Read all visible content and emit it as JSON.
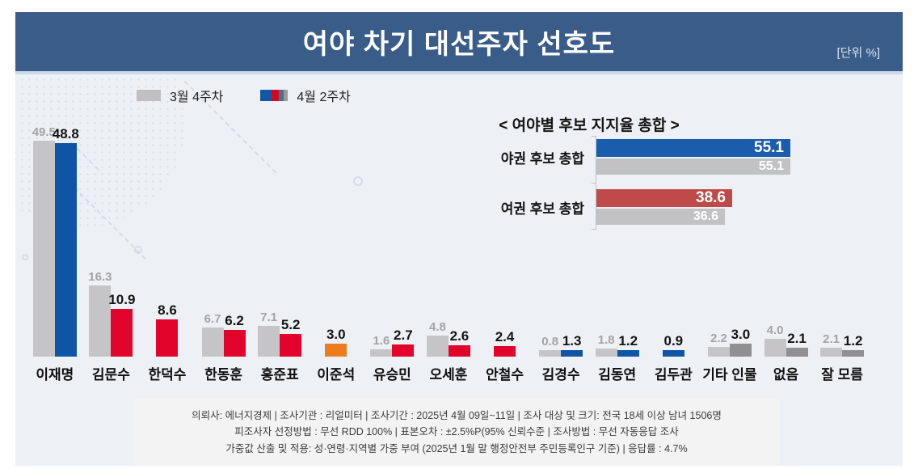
{
  "header": {
    "title": "여야 차기 대선주자 선호도",
    "unit_label": "[단위 %]"
  },
  "legend": {
    "prev_label": "3월 4주차",
    "curr_label": "4월 2주차",
    "prev_color": "#c0c0c2",
    "curr_swatch_colors": [
      "#1258a8",
      "#d6071f",
      "#47728e",
      "#9b9b9b"
    ],
    "curr_swatch_widths": [
      14,
      9,
      6,
      5
    ]
  },
  "chart_data": [
    {
      "type": "bar",
      "title": "여야 차기 대선주자 선호도",
      "unit": "%",
      "ylim": [
        0,
        50
      ],
      "grid": false,
      "legend_position": "top-left",
      "categories": [
        "이재명",
        "김문수",
        "한덕수",
        "한동훈",
        "홍준표",
        "이준석",
        "유승민",
        "오세훈",
        "안철수",
        "김경수",
        "김동연",
        "김두관",
        "기타 인물",
        "없음",
        "잘 모름"
      ],
      "series": [
        {
          "name": "3월 4주차",
          "values": [
            49.5,
            16.3,
            null,
            6.7,
            7.1,
            null,
            1.6,
            4.8,
            null,
            0.8,
            1.8,
            null,
            2.2,
            4.0,
            2.1
          ]
        },
        {
          "name": "4월 2주차",
          "values": [
            48.8,
            10.9,
            8.6,
            6.2,
            5.2,
            3.0,
            2.7,
            2.6,
            2.4,
            1.3,
            1.2,
            0.9,
            3.0,
            2.1,
            1.2
          ]
        }
      ],
      "prev_bar_color": "#c5c5c7",
      "current_bar_colors": [
        "#0e55a6",
        "#e2042b",
        "#e2042b",
        "#e2042b",
        "#e2042b",
        "#eb7d1e",
        "#e2042b",
        "#e2042b",
        "#e2042b",
        "#0e55a6",
        "#0e55a6",
        "#0e55a6",
        "#909093",
        "#909093",
        "#909093"
      ]
    },
    {
      "type": "bar",
      "title": "< 여야별 후보 지지율 총합 >",
      "orientation": "horizontal",
      "xlim": [
        0,
        56
      ],
      "categories": [
        "야권 후보 총합",
        "여권 후보 총합"
      ],
      "series": [
        {
          "name": "4월 2주차",
          "values": [
            55.1,
            38.6
          ]
        },
        {
          "name": "3월 4주차",
          "values": [
            55.1,
            36.6
          ]
        }
      ],
      "current_bar_colors": [
        "#1a5dad",
        "#be4b49"
      ],
      "prev_bar_color": "#c2c2c5"
    }
  ],
  "footer": {
    "lines": [
      "의뢰사: 에너지경제 | 조사기관 : 리얼미터  |  조사기간 : 2025년 4월 09일~11일 | 조사 대상 및 크기: 전국 18세 이상 남녀 1506명",
      "피조사자 선정방법 : 무선 RDD 100% | 표본오차 : ±2.5%P(95% 신뢰수준 | 조사방법 : 무선 자동응답 조사",
      "가중값 산출 및 적용: 성·연령·지역별 가중 부여 (2025년 1월 말 행정안전부 주민등록인구 기준) | 응답률 : 4.7%"
    ]
  },
  "colors": {
    "header_bg": "#3a5c88",
    "content_bg": "#edf1f6",
    "blue": "#0e55a6",
    "red": "#e2042b",
    "orange": "#eb7d1e",
    "prev_gray": "#c5c5c7",
    "other_gray": "#909093",
    "inset_blue": "#1a5dad",
    "inset_red": "#be4b49"
  }
}
